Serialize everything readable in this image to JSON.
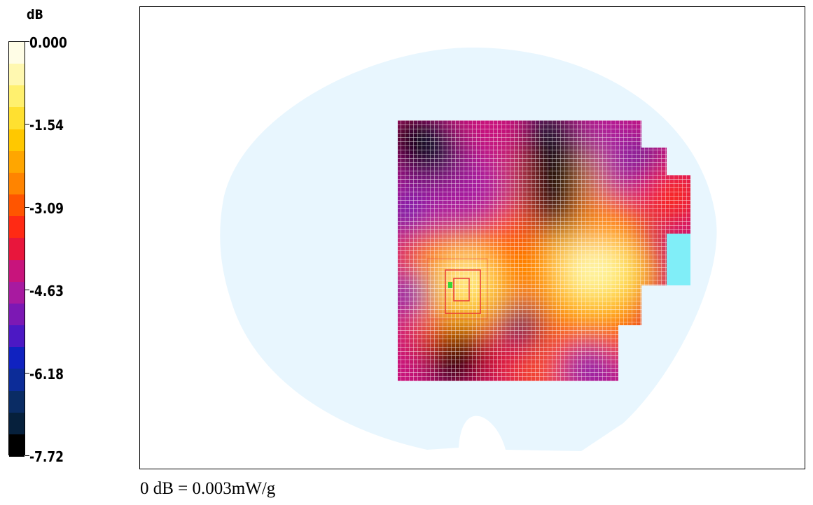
{
  "chart_data": {
    "type": "heatmap",
    "colorbar": {
      "unit": "dB",
      "tick_labels": [
        "0.000",
        "-1.54",
        "-3.09",
        "-4.63",
        "-6.18",
        "-7.72"
      ],
      "tick_values": [
        0,
        -1.54,
        -3.09,
        -4.63,
        -6.18,
        -7.72
      ],
      "range": [
        -7.72,
        0
      ],
      "colors": [
        "#fffde6",
        "#fff8b0",
        "#fff06e",
        "#ffe030",
        "#ffc800",
        "#ffa600",
        "#ff8400",
        "#ff5500",
        "#ff2a14",
        "#e8163c",
        "#c8147c",
        "#a81aa0",
        "#7c18b4",
        "#4c18c4",
        "#1022c0",
        "#0c2c98",
        "#0a2c64",
        "#06203c",
        "#000000"
      ]
    },
    "colors": {
      "phantom": "#e8f6fe",
      "cyan_cell": "#80eef8",
      "grid_line": "#ffffff",
      "probe_box": "#e83a3a",
      "marker": "#36d43a"
    },
    "footnote": "0 dB = 0.003mW/g"
  }
}
